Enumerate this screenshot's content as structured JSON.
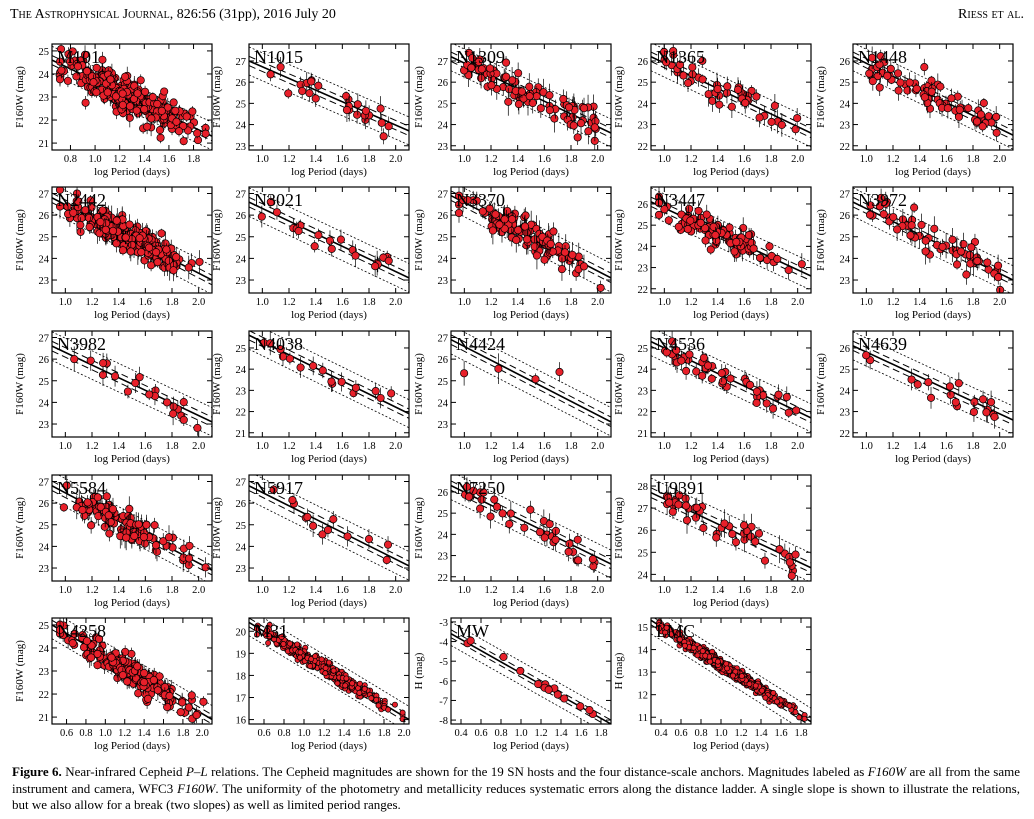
{
  "header": {
    "journal": "The Astrophysical Journal",
    "citation": ", 826:56 (31pp), 2016 July 20",
    "authors": "Riess et al."
  },
  "caption": {
    "label": "Figure 6.",
    "parts": [
      {
        "t": " Near-infrared Cepheid "
      },
      {
        "t": "P–L",
        "i": true
      },
      {
        "t": " relations. The Cepheid magnitudes are shown for the 19 SN hosts and the four distance-scale anchors. Magnitudes labeled as "
      },
      {
        "t": "F160W",
        "i": true
      },
      {
        "t": " are all from the same instrument and camera, WFC3 "
      },
      {
        "t": "F160W",
        "i": true
      },
      {
        "t": ". The uniformity of the photometry and metallicity reduces systematic errors along the distance ladder. A single slope is shown to illustrate the relations, but we also allow for a break (two slopes) as well as limited period ranges."
      }
    ]
  },
  "chart_data": [
    {
      "type": "scatter",
      "title": "M101",
      "xlabel": "log Period (days)",
      "ylabel": "F160W (mag)",
      "xlim": [
        0.65,
        1.95
      ],
      "ylim": [
        25.3,
        20.7
      ],
      "xticks": [
        "0.8",
        "1.0",
        "1.2",
        "1.4",
        "1.6",
        "1.8"
      ],
      "yticks": [
        "21",
        "22",
        "23",
        "24",
        "25"
      ],
      "n": 320,
      "trend_y_at_xmin": 24.6,
      "trend_y_at_xmax": 21.3,
      "line_offset": 0.2,
      "scatter": 0.35,
      "errbar": 0.35
    },
    {
      "type": "scatter",
      "title": "N1015",
      "xlabel": "log Period (days)",
      "ylabel": "F160W (mag)",
      "xlim": [
        0.9,
        2.1
      ],
      "ylim": [
        27.8,
        22.8
      ],
      "xticks": [
        "1.0",
        "1.2",
        "1.4",
        "1.6",
        "1.8",
        "2.0"
      ],
      "yticks": [
        "23",
        "24",
        "25",
        "26",
        "27"
      ],
      "n": 26,
      "trend_y_at_xmin": 27.0,
      "trend_y_at_xmax": 23.7,
      "line_offset": 0.22,
      "scatter": 0.4,
      "errbar": 0.5
    },
    {
      "type": "scatter",
      "title": "N1309",
      "xlabel": "log Period (days)",
      "ylabel": "F160W (mag)",
      "xlim": [
        0.9,
        2.1
      ],
      "ylim": [
        27.8,
        22.8
      ],
      "xticks": [
        "1.0",
        "1.2",
        "1.4",
        "1.6",
        "1.8",
        "2.0"
      ],
      "yticks": [
        "23",
        "24",
        "25",
        "26",
        "27"
      ],
      "n": 90,
      "trend_y_at_xmin": 27.2,
      "trend_y_at_xmax": 23.6,
      "line_offset": 0.22,
      "scatter": 0.4,
      "errbar": 0.55
    },
    {
      "type": "scatter",
      "title": "N1365",
      "xlabel": "log Period (days)",
      "ylabel": "F160W (mag)",
      "xlim": [
        0.9,
        2.1
      ],
      "ylim": [
        26.8,
        21.8
      ],
      "xticks": [
        "1.0",
        "1.2",
        "1.4",
        "1.6",
        "1.8",
        "2.0"
      ],
      "yticks": [
        "22",
        "23",
        "24",
        "25",
        "26"
      ],
      "n": 48,
      "trend_y_at_xmin": 26.2,
      "trend_y_at_xmax": 22.6,
      "line_offset": 0.22,
      "scatter": 0.4,
      "errbar": 0.5
    },
    {
      "type": "scatter",
      "title": "N1448",
      "xlabel": "log Period (days)",
      "ylabel": "F160W (mag)",
      "xlim": [
        0.9,
        2.1
      ],
      "ylim": [
        26.8,
        21.8
      ],
      "xticks": [
        "1.0",
        "1.2",
        "1.4",
        "1.6",
        "1.8",
        "2.0"
      ],
      "yticks": [
        "22",
        "23",
        "24",
        "25",
        "26"
      ],
      "n": 70,
      "trend_y_at_xmin": 26.2,
      "trend_y_at_xmax": 22.5,
      "line_offset": 0.22,
      "scatter": 0.4,
      "errbar": 0.45
    },
    {
      "type": "scatter",
      "title": "N2442",
      "xlabel": "log Period (days)",
      "ylabel": "F160W (mag)",
      "xlim": [
        0.9,
        2.1
      ],
      "ylim": [
        27.3,
        22.4
      ],
      "xticks": [
        "1.0",
        "1.2",
        "1.4",
        "1.6",
        "1.8",
        "2.0"
      ],
      "yticks": [
        "23",
        "24",
        "25",
        "26",
        "27"
      ],
      "n": 250,
      "trend_y_at_xmin": 26.8,
      "trend_y_at_xmax": 23.0,
      "line_offset": 0.22,
      "scatter": 0.35,
      "errbar": 0.5
    },
    {
      "type": "scatter",
      "title": "N3021",
      "xlabel": "log Period (days)",
      "ylabel": "F160W (mag)",
      "xlim": [
        0.9,
        2.1
      ],
      "ylim": [
        27.3,
        22.4
      ],
      "xticks": [
        "1.0",
        "1.2",
        "1.4",
        "1.6",
        "1.8",
        "2.0"
      ],
      "yticks": [
        "23",
        "24",
        "25",
        "26",
        "27"
      ],
      "n": 20,
      "trend_y_at_xmin": 26.6,
      "trend_y_at_xmax": 23.1,
      "line_offset": 0.22,
      "scatter": 0.35,
      "errbar": 0.5
    },
    {
      "type": "scatter",
      "title": "N3370",
      "xlabel": "log Period (days)",
      "ylabel": "F160W (mag)",
      "xlim": [
        0.9,
        2.1
      ],
      "ylim": [
        27.3,
        22.4
      ],
      "xticks": [
        "1.0",
        "1.2",
        "1.4",
        "1.6",
        "1.8",
        "2.0"
      ],
      "yticks": [
        "23",
        "24",
        "25",
        "26",
        "27"
      ],
      "n": 120,
      "trend_y_at_xmin": 26.9,
      "trend_y_at_xmax": 23.1,
      "line_offset": 0.22,
      "scatter": 0.35,
      "errbar": 0.55
    },
    {
      "type": "scatter",
      "title": "N3447",
      "xlabel": "log Period (days)",
      "ylabel": "F160W (mag)",
      "xlim": [
        0.9,
        2.1
      ],
      "ylim": [
        26.8,
        21.8
      ],
      "xticks": [
        "1.0",
        "1.2",
        "1.4",
        "1.6",
        "1.8",
        "2.0"
      ],
      "yticks": [
        "22",
        "23",
        "24",
        "25",
        "26"
      ],
      "n": 110,
      "trend_y_at_xmin": 26.1,
      "trend_y_at_xmax": 22.6,
      "line_offset": 0.22,
      "scatter": 0.3,
      "errbar": 0.45
    },
    {
      "type": "scatter",
      "title": "N3972",
      "xlabel": "log Period (days)",
      "ylabel": "F160W (mag)",
      "xlim": [
        0.9,
        2.1
      ],
      "ylim": [
        27.3,
        22.4
      ],
      "xticks": [
        "1.0",
        "1.2",
        "1.4",
        "1.6",
        "1.8",
        "2.0"
      ],
      "yticks": [
        "23",
        "24",
        "25",
        "26",
        "27"
      ],
      "n": 60,
      "trend_y_at_xmin": 26.6,
      "trend_y_at_xmax": 23.0,
      "line_offset": 0.22,
      "scatter": 0.4,
      "errbar": 0.55
    },
    {
      "type": "scatter",
      "title": "N3982",
      "xlabel": "log Period (days)",
      "ylabel": "F160W (mag)",
      "xlim": [
        0.9,
        2.1
      ],
      "ylim": [
        27.3,
        22.4
      ],
      "xticks": [
        "1.0",
        "1.2",
        "1.4",
        "1.6",
        "1.8",
        "2.0"
      ],
      "yticks": [
        "23",
        "24",
        "25",
        "26",
        "27"
      ],
      "n": 20,
      "trend_y_at_xmin": 26.6,
      "trend_y_at_xmax": 23.1,
      "line_offset": 0.22,
      "scatter": 0.35,
      "errbar": 0.5
    },
    {
      "type": "scatter",
      "title": "N4038",
      "xlabel": "log Period (days)",
      "ylabel": "F160W (mag)",
      "xlim": [
        0.9,
        2.1
      ],
      "ylim": [
        25.8,
        20.8
      ],
      "xticks": [
        "1.0",
        "1.2",
        "1.4",
        "1.6",
        "1.8",
        "2.0"
      ],
      "yticks": [
        "21",
        "22",
        "23",
        "24",
        "25"
      ],
      "n": 16,
      "trend_y_at_xmin": 25.6,
      "trend_y_at_xmax": 21.9,
      "line_offset": 0.22,
      "scatter": 0.35,
      "errbar": 0.5
    },
    {
      "type": "scatter",
      "title": "N4424",
      "xlabel": "log Period (days)",
      "ylabel": "F160W (mag)",
      "xlim": [
        0.9,
        2.1
      ],
      "ylim": [
        27.3,
        22.4
      ],
      "xticks": [
        "1.0",
        "1.2",
        "1.4",
        "1.6",
        "1.8",
        "2.0"
      ],
      "yticks": [
        "23",
        "24",
        "25",
        "26",
        "27"
      ],
      "n": 4,
      "trend_y_at_xmin": 26.9,
      "trend_y_at_xmax": 23.1,
      "line_offset": 0.22,
      "scatter": 0.9,
      "errbar": 0.6
    },
    {
      "type": "scatter",
      "title": "N4536",
      "xlabel": "log Period (days)",
      "ylabel": "F160W (mag)",
      "xlim": [
        0.9,
        2.1
      ],
      "ylim": [
        25.8,
        20.8
      ],
      "xticks": [
        "1.0",
        "1.2",
        "1.4",
        "1.6",
        "1.8",
        "2.0"
      ],
      "yticks": [
        "21",
        "22",
        "23",
        "24",
        "25"
      ],
      "n": 45,
      "trend_y_at_xmin": 25.3,
      "trend_y_at_xmax": 21.7,
      "line_offset": 0.22,
      "scatter": 0.3,
      "errbar": 0.45
    },
    {
      "type": "scatter",
      "title": "N4639",
      "xlabel": "log Period (days)",
      "ylabel": "F160W (mag)",
      "xlim": [
        0.9,
        2.1
      ],
      "ylim": [
        26.8,
        21.8
      ],
      "xticks": [
        "1.0",
        "1.2",
        "1.4",
        "1.6",
        "1.8",
        "2.0"
      ],
      "yticks": [
        "22",
        "23",
        "24",
        "25",
        "26"
      ],
      "n": 20,
      "trend_y_at_xmin": 26.1,
      "trend_y_at_xmax": 22.6,
      "line_offset": 0.22,
      "scatter": 0.35,
      "errbar": 0.5
    },
    {
      "type": "scatter",
      "title": "N5584",
      "xlabel": "log Period (days)",
      "ylabel": "F160W (mag)",
      "xlim": [
        0.9,
        2.1
      ],
      "ylim": [
        27.3,
        22.4
      ],
      "xticks": [
        "1.0",
        "1.2",
        "1.4",
        "1.6",
        "1.8",
        "2.0"
      ],
      "yticks": [
        "23",
        "24",
        "25",
        "26",
        "27"
      ],
      "n": 110,
      "trend_y_at_xmin": 26.8,
      "trend_y_at_xmax": 22.9,
      "line_offset": 0.22,
      "scatter": 0.35,
      "errbar": 0.5
    },
    {
      "type": "scatter",
      "title": "N5917",
      "xlabel": "log Period (days)",
      "ylabel": "F160W (mag)",
      "xlim": [
        0.9,
        2.1
      ],
      "ylim": [
        27.3,
        22.4
      ],
      "xticks": [
        "1.0",
        "1.2",
        "1.4",
        "1.6",
        "1.8",
        "2.0"
      ],
      "yticks": [
        "23",
        "24",
        "25",
        "26",
        "27"
      ],
      "n": 13,
      "trend_y_at_xmin": 26.8,
      "trend_y_at_xmax": 23.1,
      "line_offset": 0.22,
      "scatter": 0.35,
      "errbar": 0.5
    },
    {
      "type": "scatter",
      "title": "N7250",
      "xlabel": "log Period (days)",
      "ylabel": "F160W (mag)",
      "xlim": [
        0.9,
        2.1
      ],
      "ylim": [
        26.8,
        21.8
      ],
      "xticks": [
        "1.0",
        "1.2",
        "1.4",
        "1.6",
        "1.8",
        "2.0"
      ],
      "yticks": [
        "22",
        "23",
        "24",
        "25",
        "26"
      ],
      "n": 35,
      "trend_y_at_xmin": 26.3,
      "trend_y_at_xmax": 22.6,
      "line_offset": 0.22,
      "scatter": 0.4,
      "errbar": 0.5
    },
    {
      "type": "scatter",
      "title": "U9391",
      "xlabel": "log Period (days)",
      "ylabel": "F160W (mag)",
      "xlim": [
        0.9,
        2.1
      ],
      "ylim": [
        28.5,
        23.7
      ],
      "xticks": [
        "1.0",
        "1.2",
        "1.4",
        "1.6",
        "1.8",
        "2.0"
      ],
      "yticks": [
        "24",
        "25",
        "26",
        "27",
        "28"
      ],
      "n": 45,
      "trend_y_at_xmin": 27.7,
      "trend_y_at_xmax": 24.3,
      "line_offset": 0.22,
      "scatter": 0.4,
      "errbar": 0.55
    },
    {
      "type": "scatter",
      "title": "N4258",
      "xlabel": "log Period (days)",
      "ylabel": "F160W (mag)",
      "xlim": [
        0.45,
        2.1
      ],
      "ylim": [
        25.3,
        20.7
      ],
      "xticks": [
        "0.6",
        "0.8",
        "1.0",
        "1.2",
        "1.4",
        "1.6",
        "1.8",
        "2.0"
      ],
      "yticks": [
        "21",
        "22",
        "23",
        "24",
        "25"
      ],
      "n": 200,
      "trend_y_at_xmin": 25.0,
      "trend_y_at_xmax": 20.9,
      "line_offset": 0.2,
      "scatter": 0.3,
      "errbar": 0.35
    },
    {
      "type": "scatter",
      "title": "M31",
      "xlabel": "log Period (days)",
      "ylabel": "",
      "xlim": [
        0.45,
        2.05
      ],
      "ylim": [
        20.6,
        15.8
      ],
      "xticks": [
        "0.6",
        "0.8",
        "1.0",
        "1.2",
        "1.4",
        "1.6",
        "1.8",
        "2.0"
      ],
      "yticks": [
        "16",
        "17",
        "18",
        "19",
        "20"
      ],
      "n": 370,
      "trend_y_at_xmin": 20.4,
      "trend_y_at_xmax": 16.0,
      "line_offset": 0.2,
      "scatter": 0.15,
      "errbar": 0.15,
      "small_markers": true
    },
    {
      "type": "scatter",
      "title": "MW",
      "xlabel": "log Period (days)",
      "ylabel": "H (mag)",
      "xlim": [
        0.3,
        1.9
      ],
      "ylim": [
        -2.8,
        -8.2
      ],
      "xticks": [
        "0.4",
        "0.6",
        "0.8",
        "1.0",
        "1.2",
        "1.4",
        "1.6",
        "1.8"
      ],
      "yticks": [
        "-3",
        "-4",
        "-5",
        "-6",
        "-7",
        "-8"
      ],
      "n": 14,
      "trend_y_at_xmin": -3.6,
      "trend_y_at_xmax": -8.2,
      "line_offset": 0.2,
      "scatter": 0.15,
      "errbar": 0.1
    },
    {
      "type": "scatter",
      "title": "LMC",
      "xlabel": "log Period (days)",
      "ylabel": "H (mag)",
      "xlim": [
        0.3,
        1.9
      ],
      "ylim": [
        15.4,
        10.7
      ],
      "xticks": [
        "0.4",
        "0.6",
        "0.8",
        "1.0",
        "1.2",
        "1.4",
        "1.6",
        "1.8"
      ],
      "yticks": [
        "11",
        "12",
        "13",
        "14",
        "15"
      ],
      "n": 700,
      "trend_y_at_xmin": 15.3,
      "trend_y_at_xmax": 10.8,
      "line_offset": 0.2,
      "scatter": 0.12,
      "errbar": 0.08,
      "small_markers": true
    }
  ]
}
